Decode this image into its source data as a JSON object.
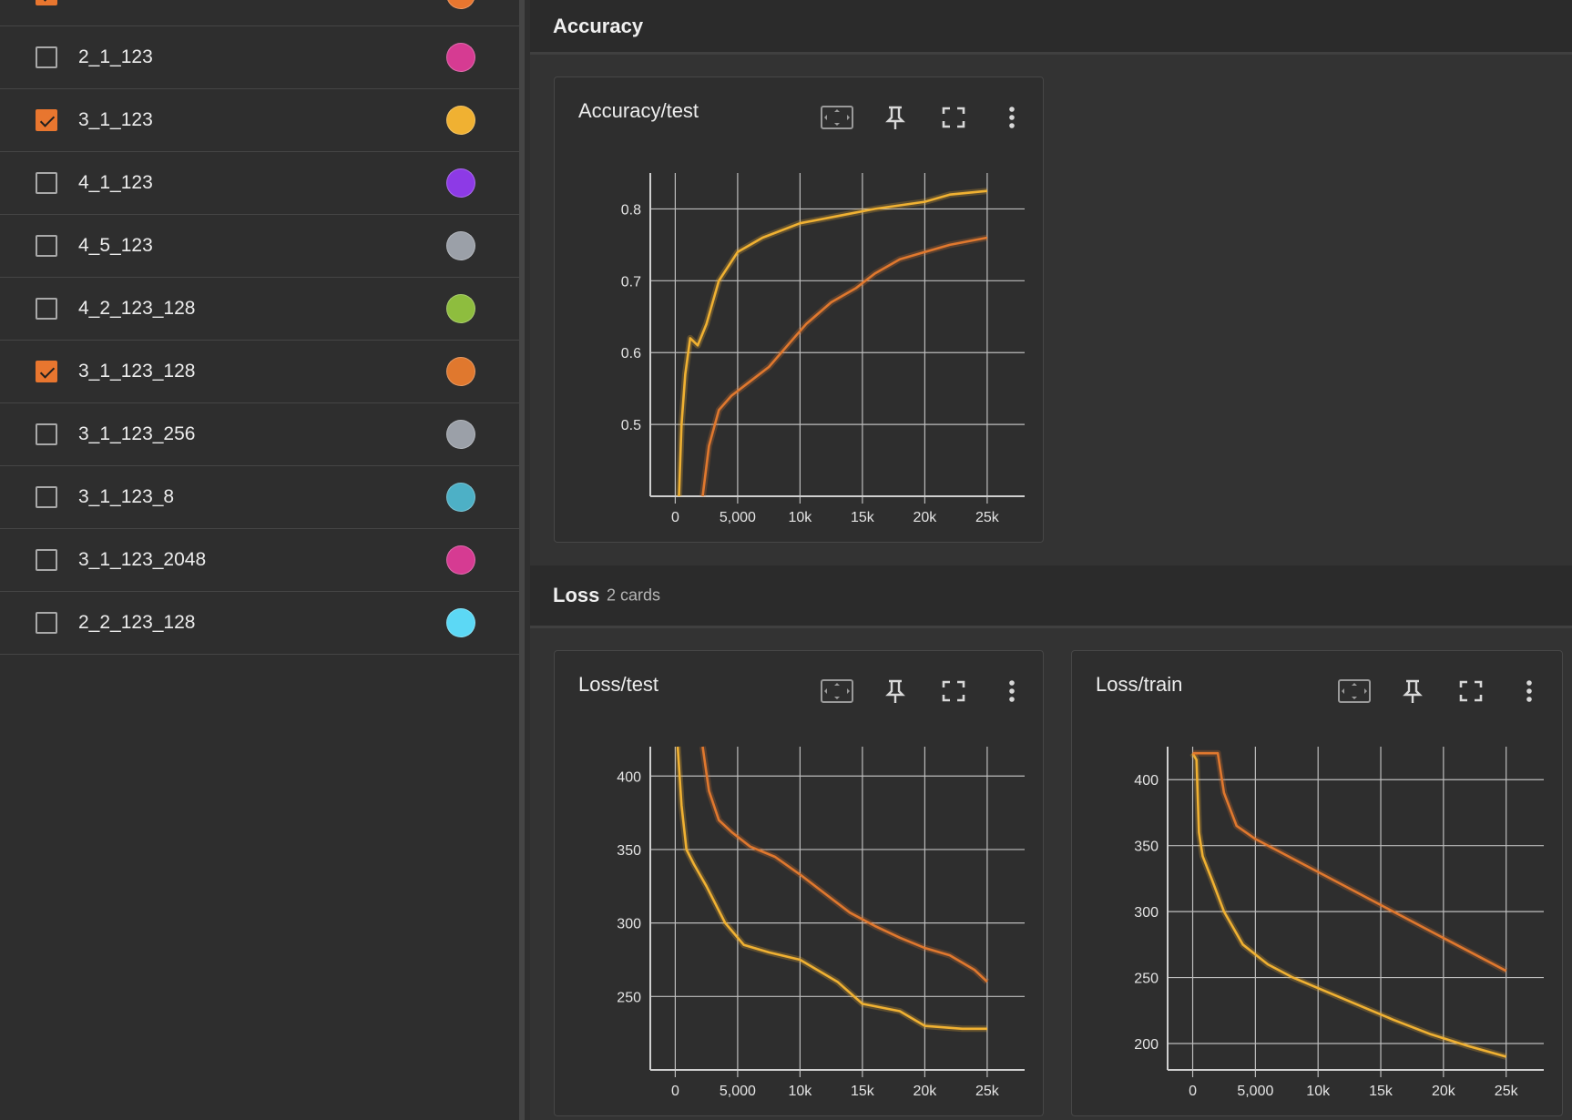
{
  "sidebar": {
    "runs": [
      {
        "name": "",
        "checked": true,
        "color": "#e8762f",
        "partial": true
      },
      {
        "name": "2_1_123",
        "checked": false,
        "color": "#d63b92"
      },
      {
        "name": "3_1_123",
        "checked": true,
        "color": "#f0b132"
      },
      {
        "name": "4_1_123",
        "checked": false,
        "color": "#8d3ae6"
      },
      {
        "name": "4_5_123",
        "checked": false,
        "color": "#9ba0a8"
      },
      {
        "name": "4_2_123_128",
        "checked": false,
        "color": "#8ebd3e"
      },
      {
        "name": "3_1_123_128",
        "checked": true,
        "color": "#e0782e"
      },
      {
        "name": "3_1_123_256",
        "checked": false,
        "color": "#9ba0a8"
      },
      {
        "name": "3_1_123_8",
        "checked": false,
        "color": "#4db0c6"
      },
      {
        "name": "3_1_123_2048",
        "checked": false,
        "color": "#d63b92"
      },
      {
        "name": "2_2_123_128",
        "checked": false,
        "color": "#5cd8f5"
      }
    ]
  },
  "sections": {
    "accuracy": {
      "title": "Accuracy"
    },
    "loss": {
      "title": "Loss",
      "count": "2 cards"
    }
  },
  "colors": {
    "run_a": "#f0b132",
    "run_b": "#e0782e"
  },
  "cards": {
    "acc_test": {
      "title": "Accuracy/test"
    },
    "loss_test": {
      "title": "Loss/test"
    },
    "loss_train": {
      "title": "Loss/train"
    }
  },
  "card_tools": [
    "fit-domain-icon",
    "pin-icon",
    "fullscreen-icon",
    "more-vert-icon"
  ],
  "chart_data": [
    {
      "type": "line",
      "title": "Accuracy/test",
      "xlim": [
        -2000,
        28000
      ],
      "ylim": [
        0.4,
        0.85
      ],
      "xticks": [
        0,
        5000,
        10000,
        15000,
        20000,
        25000
      ],
      "xtick_labels": [
        "0",
        "5,000",
        "10k",
        "15k",
        "20k",
        "25k"
      ],
      "yticks": [
        0.5,
        0.6,
        0.7,
        0.8
      ],
      "ytick_labels": [
        "0.5",
        "0.6",
        "0.7",
        "0.8"
      ],
      "grid": true,
      "series": [
        {
          "color": "#f0b132",
          "x": [
            300,
            500,
            800,
            1200,
            1800,
            2500,
            3500,
            5000,
            7000,
            10000,
            13000,
            16000,
            20000,
            22000,
            25000
          ],
          "y": [
            0.4,
            0.5,
            0.57,
            0.62,
            0.61,
            0.64,
            0.7,
            0.74,
            0.76,
            0.78,
            0.79,
            0.8,
            0.81,
            0.82,
            0.825
          ]
        },
        {
          "color": "#e0782e",
          "x": [
            2200,
            2700,
            3500,
            4500,
            6000,
            7500,
            9000,
            10500,
            12500,
            14500,
            16000,
            18000,
            20000,
            22000,
            25000
          ],
          "y": [
            0.4,
            0.47,
            0.52,
            0.54,
            0.56,
            0.58,
            0.61,
            0.64,
            0.67,
            0.69,
            0.71,
            0.73,
            0.74,
            0.75,
            0.76
          ]
        }
      ]
    },
    {
      "type": "line",
      "title": "Loss/test",
      "xlim": [
        -2000,
        28000
      ],
      "ylim": [
        200,
        420
      ],
      "xticks": [
        0,
        5000,
        10000,
        15000,
        20000,
        25000
      ],
      "xtick_labels": [
        "0",
        "5,000",
        "10k",
        "15k",
        "20k",
        "25k"
      ],
      "yticks": [
        250,
        300,
        350,
        400
      ],
      "ytick_labels": [
        "250",
        "300",
        "350",
        "400"
      ],
      "grid": true,
      "series": [
        {
          "color": "#f0b132",
          "x": [
            200,
            500,
            900,
            1500,
            2500,
            4000,
            5500,
            7500,
            10000,
            13000,
            15000,
            18000,
            20000,
            23000,
            25000
          ],
          "y": [
            420,
            380,
            350,
            340,
            325,
            300,
            285,
            280,
            275,
            260,
            245,
            240,
            230,
            228,
            228
          ]
        },
        {
          "color": "#e0782e",
          "x": [
            2200,
            2700,
            3500,
            4500,
            6000,
            8000,
            10000,
            12000,
            14000,
            16000,
            18000,
            20000,
            22000,
            24000,
            25000
          ],
          "y": [
            420,
            390,
            370,
            362,
            352,
            345,
            333,
            320,
            307,
            298,
            290,
            283,
            278,
            268,
            260
          ]
        }
      ]
    },
    {
      "type": "line",
      "title": "Loss/train",
      "xlim": [
        -2000,
        28000
      ],
      "ylim": [
        180,
        425
      ],
      "xticks": [
        0,
        5000,
        10000,
        15000,
        20000,
        25000
      ],
      "xtick_labels": [
        "0",
        "5,000",
        "10k",
        "15k",
        "20k",
        "25k"
      ],
      "yticks": [
        200,
        250,
        300,
        350,
        400
      ],
      "ytick_labels": [
        "200",
        "250",
        "300",
        "350",
        "400"
      ],
      "grid": true,
      "series": [
        {
          "color": "#f0b132",
          "x": [
            0,
            300,
            500,
            800,
            1500,
            2500,
            4000,
            6000,
            8000,
            10000,
            13000,
            16000,
            19000,
            22000,
            25000
          ],
          "y": [
            420,
            415,
            360,
            342,
            325,
            300,
            275,
            260,
            250,
            242,
            230,
            218,
            207,
            198,
            190
          ]
        },
        {
          "color": "#e0782e",
          "x": [
            0,
            2000,
            2500,
            3500,
            5000,
            7000,
            9000,
            11000,
            13000,
            15000,
            17000,
            19000,
            21000,
            23000,
            25000
          ],
          "y": [
            420,
            420,
            390,
            365,
            355,
            345,
            335,
            325,
            315,
            305,
            295,
            285,
            275,
            265,
            255
          ]
        }
      ]
    }
  ]
}
